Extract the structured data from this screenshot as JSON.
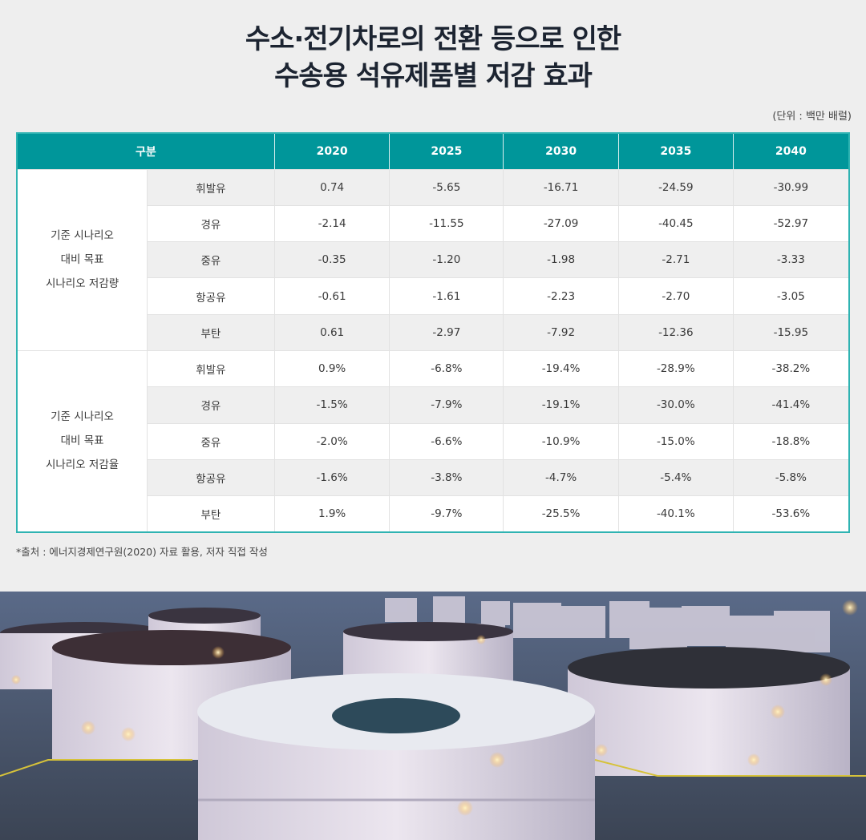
{
  "title": {
    "line1": "수소·전기차로의 전환 등으로 인한",
    "line2": "수송용 석유제품별 저감 효과"
  },
  "unit": "(단위 : 백만 배럴)",
  "table": {
    "header": {
      "category": "구분",
      "years": [
        "2020",
        "2025",
        "2030",
        "2035",
        "2040"
      ]
    },
    "groups": [
      {
        "label_lines": [
          "기준 시나리오",
          "대비 목표",
          "시나리오 저감량"
        ],
        "rows": [
          {
            "product": "휘발유",
            "values": [
              "0.74",
              "-5.65",
              "-16.71",
              "-24.59",
              "-30.99"
            ]
          },
          {
            "product": "경유",
            "values": [
              "-2.14",
              "-11.55",
              "-27.09",
              "-40.45",
              "-52.97"
            ]
          },
          {
            "product": "중유",
            "values": [
              "-0.35",
              "-1.20",
              "-1.98",
              "-2.71",
              "-3.33"
            ]
          },
          {
            "product": "항공유",
            "values": [
              "-0.61",
              "-1.61",
              "-2.23",
              "-2.70",
              "-3.05"
            ]
          },
          {
            "product": "부탄",
            "values": [
              "0.61",
              "-2.97",
              "-7.92",
              "-12.36",
              "-15.95"
            ]
          }
        ]
      },
      {
        "label_lines": [
          "기준 시나리오",
          "대비 목표",
          "시나리오 저감율"
        ],
        "rows": [
          {
            "product": "휘발유",
            "values": [
              "0.9%",
              "-6.8%",
              "-19.4%",
              "-28.9%",
              "-38.2%"
            ]
          },
          {
            "product": "경유",
            "values": [
              "-1.5%",
              "-7.9%",
              "-19.1%",
              "-30.0%",
              "-41.4%"
            ]
          },
          {
            "product": "중유",
            "values": [
              "-2.0%",
              "-6.6%",
              "-10.9%",
              "-15.0%",
              "-18.8%"
            ]
          },
          {
            "product": "항공유",
            "values": [
              "-1.6%",
              "-3.8%",
              "-4.7%",
              "-5.4%",
              "-5.8%"
            ]
          },
          {
            "product": "부탄",
            "values": [
              "1.9%",
              "-9.7%",
              "-25.5%",
              "-40.1%",
              "-53.6%"
            ]
          }
        ]
      }
    ]
  },
  "source": "*출처 : 에너지경제연구원(2020) 자료 활용, 저자 직접 작성",
  "photo": {
    "subject": "oil-storage-tanks-at-dusk"
  },
  "colors": {
    "header_bg": "#00969a",
    "table_border": "#2fb3b2",
    "title": "#1c2431",
    "page_bg": "#eeeeee",
    "row_shade": "#efefef"
  }
}
